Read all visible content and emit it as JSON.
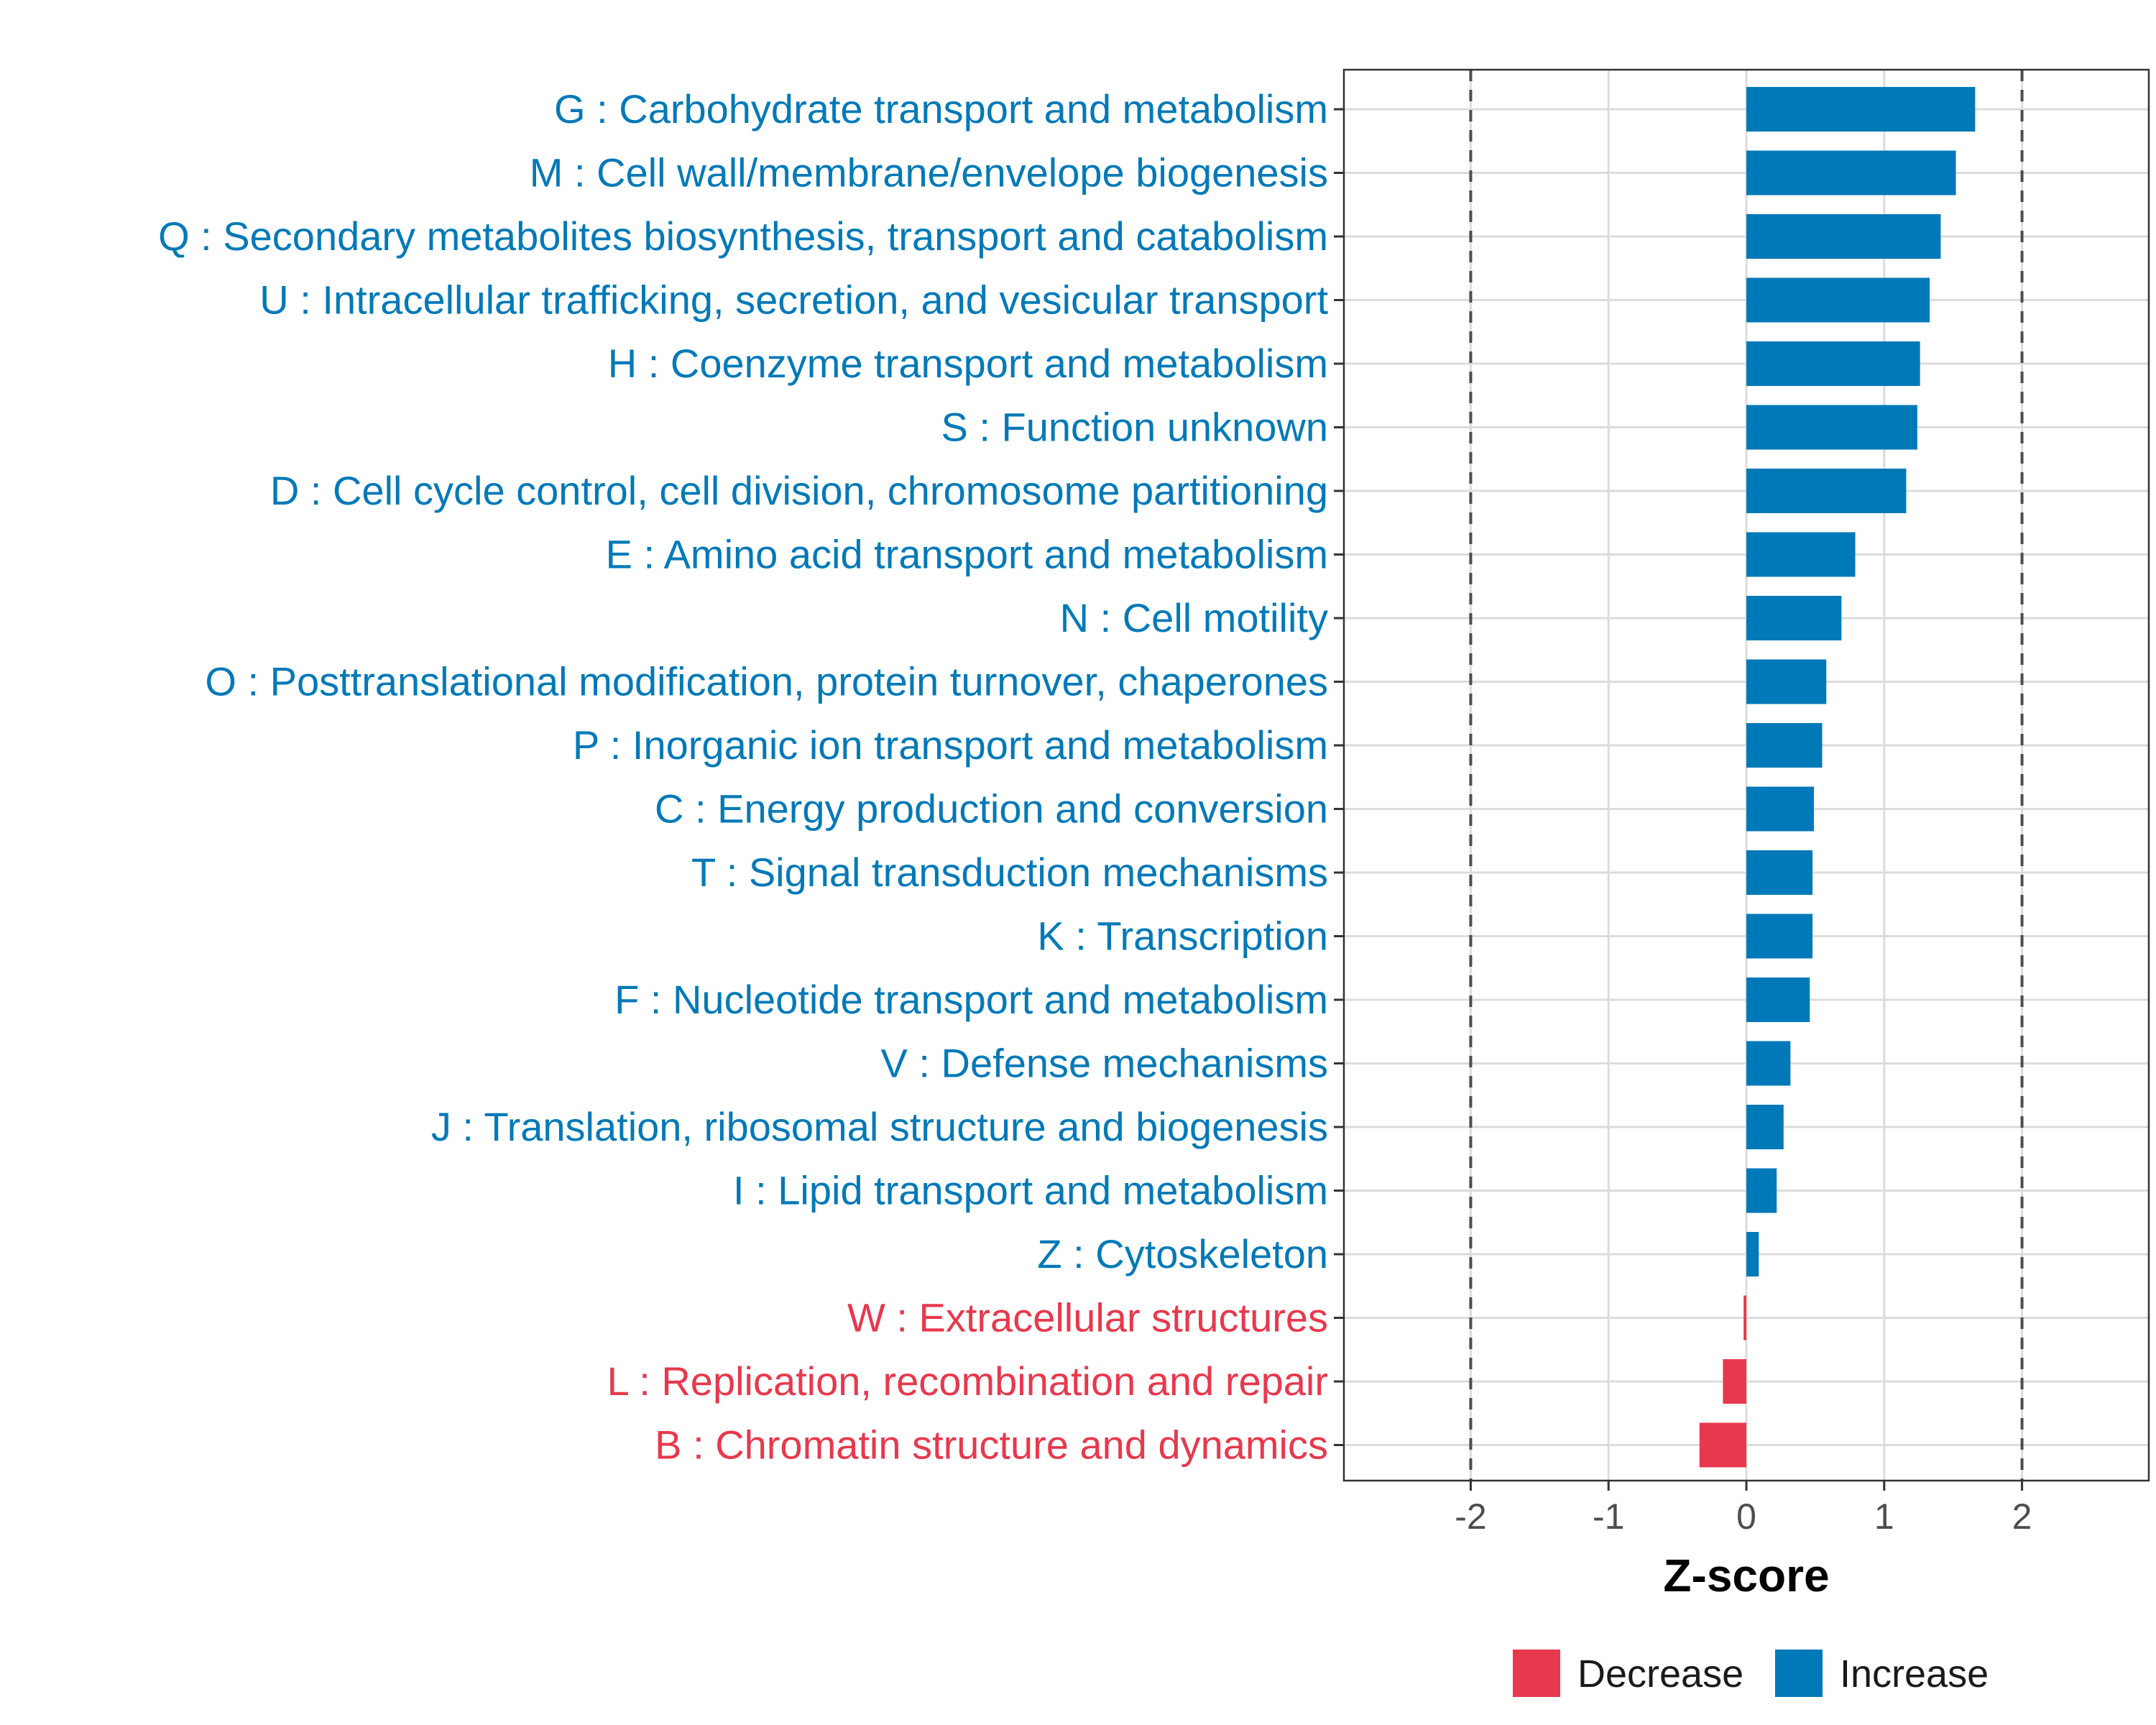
{
  "chart_data": {
    "type": "bar",
    "orientation": "horizontal",
    "title": "",
    "xlabel": "Z-score",
    "ylabel": "",
    "xlim": [
      -2.92,
      2.92
    ],
    "xticks": [
      -2,
      -1,
      0,
      1,
      2
    ],
    "xtick_labels": [
      "-2",
      "-1",
      "0",
      "1",
      "2"
    ],
    "reference_lines": [
      -2,
      2
    ],
    "grid": true,
    "colors": {
      "Decrease": "#e8384d",
      "Increase": "#0079b8"
    },
    "categories": [
      "G : Carbohydrate transport and metabolism",
      "M : Cell wall/membrane/envelope biogenesis",
      "Q : Secondary metabolites biosynthesis, transport and catabolism",
      "U : Intracellular trafficking, secretion, and vesicular transport",
      "H : Coenzyme transport and metabolism",
      "S : Function unknown",
      "D : Cell cycle control, cell division, chromosome partitioning",
      "E : Amino acid transport and metabolism",
      "N : Cell motility",
      "O : Posttranslational modification, protein turnover, chaperones",
      "P : Inorganic ion transport and metabolism",
      "C : Energy production and conversion",
      "T : Signal transduction mechanisms",
      "K : Transcription",
      "F : Nucleotide transport and metabolism",
      "V : Defense mechanisms",
      "J : Translation, ribosomal structure and biogenesis",
      "I : Lipid transport and metabolism",
      "Z : Cytoskeleton",
      "W : Extracellular structures",
      "L : Replication, recombination and repair",
      "B : Chromatin structure and dynamics"
    ],
    "values": [
      1.66,
      1.52,
      1.41,
      1.33,
      1.26,
      1.24,
      1.16,
      0.79,
      0.69,
      0.58,
      0.55,
      0.49,
      0.48,
      0.48,
      0.46,
      0.32,
      0.27,
      0.22,
      0.09,
      -0.02,
      -0.17,
      -0.34
    ],
    "groups": [
      "Increase",
      "Increase",
      "Increase",
      "Increase",
      "Increase",
      "Increase",
      "Increase",
      "Increase",
      "Increase",
      "Increase",
      "Increase",
      "Increase",
      "Increase",
      "Increase",
      "Increase",
      "Increase",
      "Increase",
      "Increase",
      "Increase",
      "Decrease",
      "Decrease",
      "Decrease"
    ],
    "legend": {
      "position": "bottom",
      "entries": [
        {
          "label": "Decrease",
          "group": "Decrease"
        },
        {
          "label": "Increase",
          "group": "Increase"
        }
      ]
    }
  }
}
